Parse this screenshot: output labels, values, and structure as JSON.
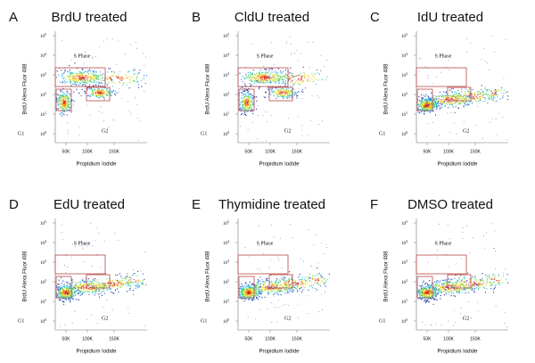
{
  "axes": {
    "x_label": "Propidium Iodide",
    "y_label": "BrdU Alexa Fluor 488",
    "x_ticks": [
      "50K",
      "100K",
      "150K"
    ],
    "y_tick_base": "10",
    "y_tick_exponents": [
      "0",
      "1",
      "2",
      "3",
      "4",
      "5"
    ]
  },
  "gates": {
    "s_phase": "S Phase",
    "g1": "G1",
    "g2": "G2"
  },
  "panels": [
    {
      "letter": "A",
      "title": "BrdU treated"
    },
    {
      "letter": "B",
      "title": "CldU treated"
    },
    {
      "letter": "C",
      "title": "IdU treated"
    },
    {
      "letter": "D",
      "title": "EdU treated"
    },
    {
      "letter": "E",
      "title": "Thymidine treated"
    },
    {
      "letter": "F",
      "title": "DMSO treated"
    }
  ]
}
